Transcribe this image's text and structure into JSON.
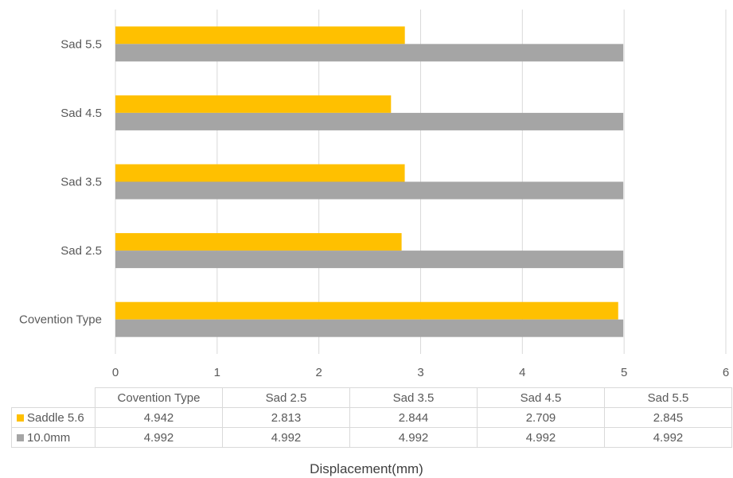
{
  "chart_data": {
    "type": "bar",
    "orientation": "horizontal",
    "categories": [
      "Covention Type",
      "Sad 2.5",
      "Sad 3.5",
      "Sad 4.5",
      "Sad 5.5"
    ],
    "series": [
      {
        "name": "Saddle 5.6",
        "color": "#FFC000",
        "values": [
          4.942,
          2.813,
          2.844,
          2.709,
          2.845
        ]
      },
      {
        "name": "10.0mm",
        "color": "#A5A5A5",
        "values": [
          4.992,
          4.992,
          4.992,
          4.992,
          4.992
        ]
      }
    ],
    "x_ticks": [
      "0",
      "1",
      "2",
      "3",
      "4",
      "5",
      "6"
    ],
    "xlim": [
      0,
      6
    ],
    "xlabel": "Displacement(mm)",
    "grid": "vertical",
    "legend": "data-table-below",
    "table": {
      "headers": [
        "Covention Type",
        "Sad 2.5",
        "Sad 3.5",
        "Sad 4.5",
        "Sad 5.5"
      ],
      "rows": [
        {
          "series": "Saddle 5.6",
          "values": [
            "4.942",
            "2.813",
            "2.844",
            "2.709",
            "2.845"
          ]
        },
        {
          "series": "10.0mm",
          "values": [
            "4.992",
            "4.992",
            "4.992",
            "4.992",
            "4.992"
          ]
        }
      ]
    }
  }
}
